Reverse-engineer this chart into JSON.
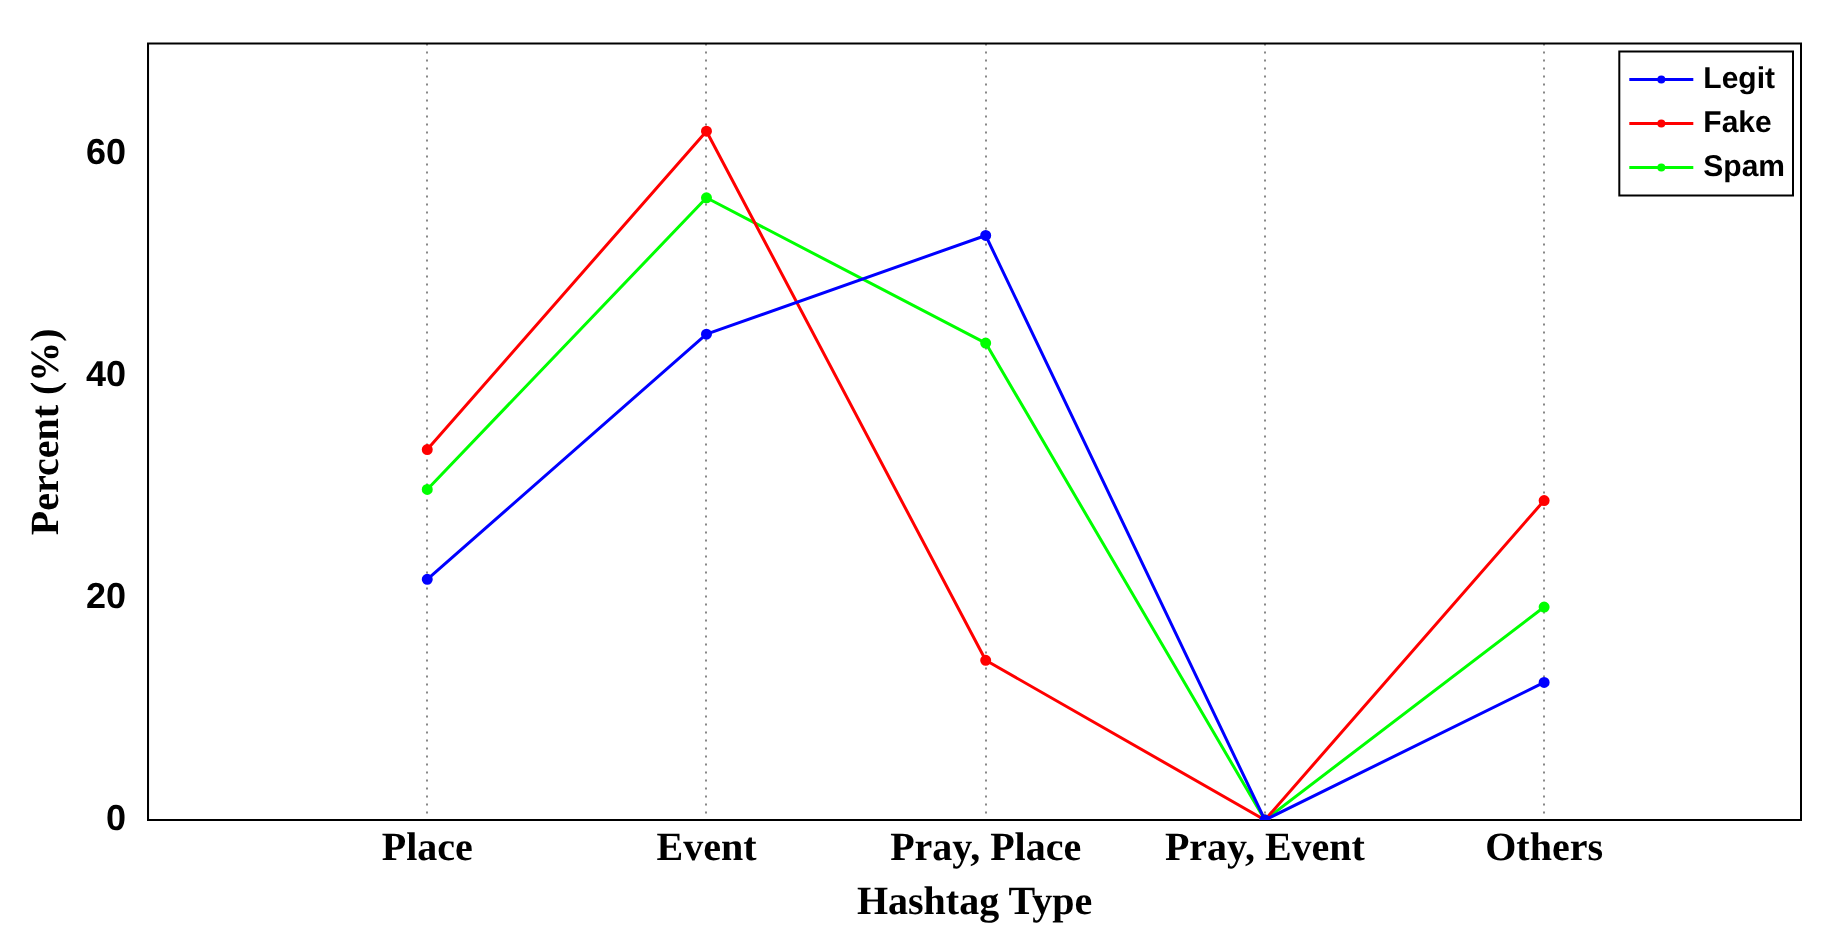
{
  "chart_data": {
    "type": "line",
    "xlabel": "Hashtag Type",
    "ylabel": "Percent (%)",
    "categories": [
      "Place",
      "Event",
      "Pray, Place",
      "Pray, Event",
      "Others"
    ],
    "series": [
      {
        "name": "Legit",
        "color": "#0000ff",
        "values": [
          21.7,
          43.8,
          52.7,
          0,
          12.4
        ]
      },
      {
        "name": "Fake",
        "color": "#ff0000",
        "values": [
          33.4,
          62.1,
          14.4,
          0,
          28.8
        ]
      },
      {
        "name": "Spam",
        "color": "#00ff00",
        "values": [
          29.8,
          56.1,
          43,
          0,
          19.2
        ]
      }
    ],
    "ylim": [
      0,
      70
    ],
    "yticks": [
      0,
      20,
      40,
      60
    ],
    "grid": "x",
    "legend": "top right",
    "marker": "circle",
    "line_style": "solid"
  }
}
